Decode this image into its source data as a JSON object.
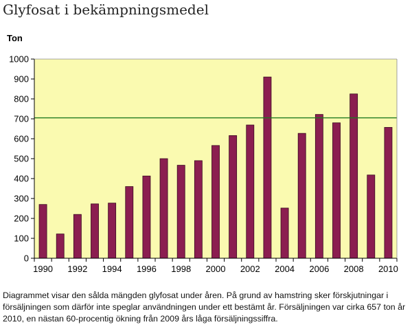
{
  "page": {
    "title": "Glyfosat i bekämpningsmedel",
    "caption": "Diagrammet visar den sålda mängden glyfosat under åren. På grund av hamstring sker förskjutningar i försäljningen som därför inte speglar användningen under ett bestämt år. Försäljningen var cirka 657 ton år 2010, en nästan 60-procentig ökning från 2009 års låga försäljningssiffra."
  },
  "chart_data": {
    "type": "bar",
    "title": "Glyfosat i bekämpningsmedel",
    "xlabel": "",
    "ylabel": "Ton",
    "categories": [
      "1990",
      "1991",
      "1992",
      "1993",
      "1994",
      "1995",
      "1996",
      "1997",
      "1998",
      "1999",
      "2000",
      "2001",
      "2002",
      "2003",
      "2004",
      "2005",
      "2006",
      "2007",
      "2008",
      "2009",
      "2010"
    ],
    "values": [
      270,
      122,
      220,
      273,
      277,
      360,
      413,
      500,
      467,
      490,
      566,
      616,
      669,
      910,
      252,
      627,
      722,
      680,
      825,
      418,
      657
    ],
    "x_tick_labels": [
      "1990",
      "1992",
      "1994",
      "1996",
      "1998",
      "2000",
      "2002",
      "2004",
      "2006",
      "2008",
      "2010"
    ],
    "ylim": [
      0,
      1000
    ],
    "y_ticks": [
      0,
      100,
      200,
      300,
      400,
      500,
      600,
      700,
      800,
      900,
      1000
    ],
    "reference_line": 705,
    "grid": false,
    "colors": {
      "bar": "#8b1e50",
      "bar_border": "#3a0a20",
      "plot_background": "#fafab0",
      "reference_line": "#1f7a1f",
      "axis": "#000000"
    }
  }
}
